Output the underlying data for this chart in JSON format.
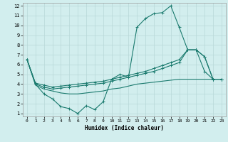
{
  "xlabel": "Humidex (Indice chaleur)",
  "bg_color": "#d2eeee",
  "grid_color": "#b8d8d8",
  "line_color": "#1a7a6e",
  "xlim": [
    -0.5,
    23.5
  ],
  "ylim": [
    0.7,
    12.3
  ],
  "xticks": [
    0,
    1,
    2,
    3,
    4,
    5,
    6,
    7,
    8,
    9,
    10,
    11,
    12,
    13,
    14,
    15,
    16,
    17,
    18,
    19,
    20,
    21,
    22,
    23
  ],
  "yticks": [
    1,
    2,
    3,
    4,
    5,
    6,
    7,
    8,
    9,
    10,
    11,
    12
  ],
  "line1_y": [
    6.5,
    4.0,
    3.0,
    2.5,
    1.7,
    1.5,
    1.0,
    1.8,
    1.4,
    2.2,
    4.5,
    5.0,
    4.7,
    9.8,
    10.7,
    11.2,
    11.3,
    12.0,
    9.8,
    7.5,
    7.5,
    5.3,
    4.5,
    4.5
  ],
  "line2_y": [
    6.5,
    4.1,
    3.9,
    3.7,
    3.8,
    3.9,
    4.0,
    4.1,
    4.2,
    4.3,
    4.5,
    4.7,
    4.9,
    5.1,
    5.3,
    5.6,
    5.9,
    6.2,
    6.5,
    7.5,
    7.5,
    6.8,
    4.5,
    4.5
  ],
  "line3_y": [
    6.5,
    4.0,
    3.7,
    3.5,
    3.6,
    3.7,
    3.8,
    3.9,
    4.0,
    4.1,
    4.3,
    4.5,
    4.7,
    4.9,
    5.1,
    5.3,
    5.6,
    5.9,
    6.2,
    7.5,
    7.5,
    6.8,
    4.5,
    4.5
  ],
  "line4_y": [
    6.5,
    3.9,
    3.5,
    3.3,
    3.1,
    3.0,
    3.0,
    3.1,
    3.2,
    3.3,
    3.5,
    3.6,
    3.8,
    4.0,
    4.1,
    4.2,
    4.3,
    4.4,
    4.5,
    4.5,
    4.5,
    4.5,
    4.5,
    4.5
  ]
}
